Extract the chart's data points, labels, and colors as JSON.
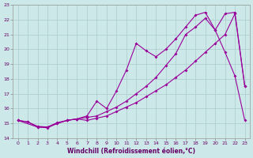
{
  "xlabel": "Windchill (Refroidissement éolien,°C)",
  "bg_color": "#cce8e8",
  "grid_color": "#aacccc",
  "line_color": "#990099",
  "xlim": [
    -0.5,
    23.5
  ],
  "ylim": [
    14,
    23
  ],
  "xticks": [
    0,
    1,
    2,
    3,
    4,
    5,
    6,
    7,
    8,
    9,
    10,
    11,
    12,
    13,
    14,
    15,
    16,
    17,
    18,
    19,
    20,
    21,
    22,
    23
  ],
  "yticks": [
    14,
    15,
    16,
    17,
    18,
    19,
    20,
    21,
    22,
    23
  ],
  "line1_x": [
    0,
    1,
    2,
    3,
    4,
    5,
    6,
    7,
    8,
    9,
    10,
    11,
    12,
    13,
    14,
    15,
    16,
    17,
    18,
    19,
    20,
    21,
    22,
    23
  ],
  "line1_y": [
    15.2,
    15.1,
    14.8,
    14.75,
    15.0,
    15.2,
    15.3,
    15.2,
    15.35,
    15.5,
    15.8,
    16.1,
    16.4,
    16.8,
    17.2,
    17.6,
    18.1,
    18.6,
    19.2,
    19.8,
    20.4,
    21.0,
    22.4,
    17.5
  ],
  "line2_x": [
    0,
    2,
    3,
    4,
    5,
    6,
    7,
    8,
    9,
    10,
    11,
    12,
    13,
    14,
    15,
    16,
    17,
    18,
    19,
    20,
    21,
    22,
    23
  ],
  "line2_y": [
    15.2,
    14.75,
    14.7,
    15.0,
    15.2,
    15.3,
    15.5,
    16.5,
    16.0,
    17.2,
    18.6,
    20.4,
    19.9,
    19.5,
    20.0,
    20.7,
    21.5,
    22.3,
    22.5,
    21.3,
    19.8,
    18.2,
    15.2
  ],
  "line3_x": [
    0,
    1,
    2,
    3,
    4,
    5,
    6,
    7,
    8,
    9,
    10,
    11,
    12,
    13,
    14,
    15,
    16,
    17,
    18,
    19,
    20,
    21,
    22,
    23
  ],
  "line3_y": [
    15.2,
    15.1,
    14.75,
    14.75,
    15.05,
    15.2,
    15.3,
    15.4,
    15.5,
    15.8,
    16.1,
    16.5,
    17.0,
    17.5,
    18.1,
    18.9,
    19.7,
    21.0,
    21.5,
    22.1,
    21.3,
    22.4,
    22.5,
    17.5
  ]
}
